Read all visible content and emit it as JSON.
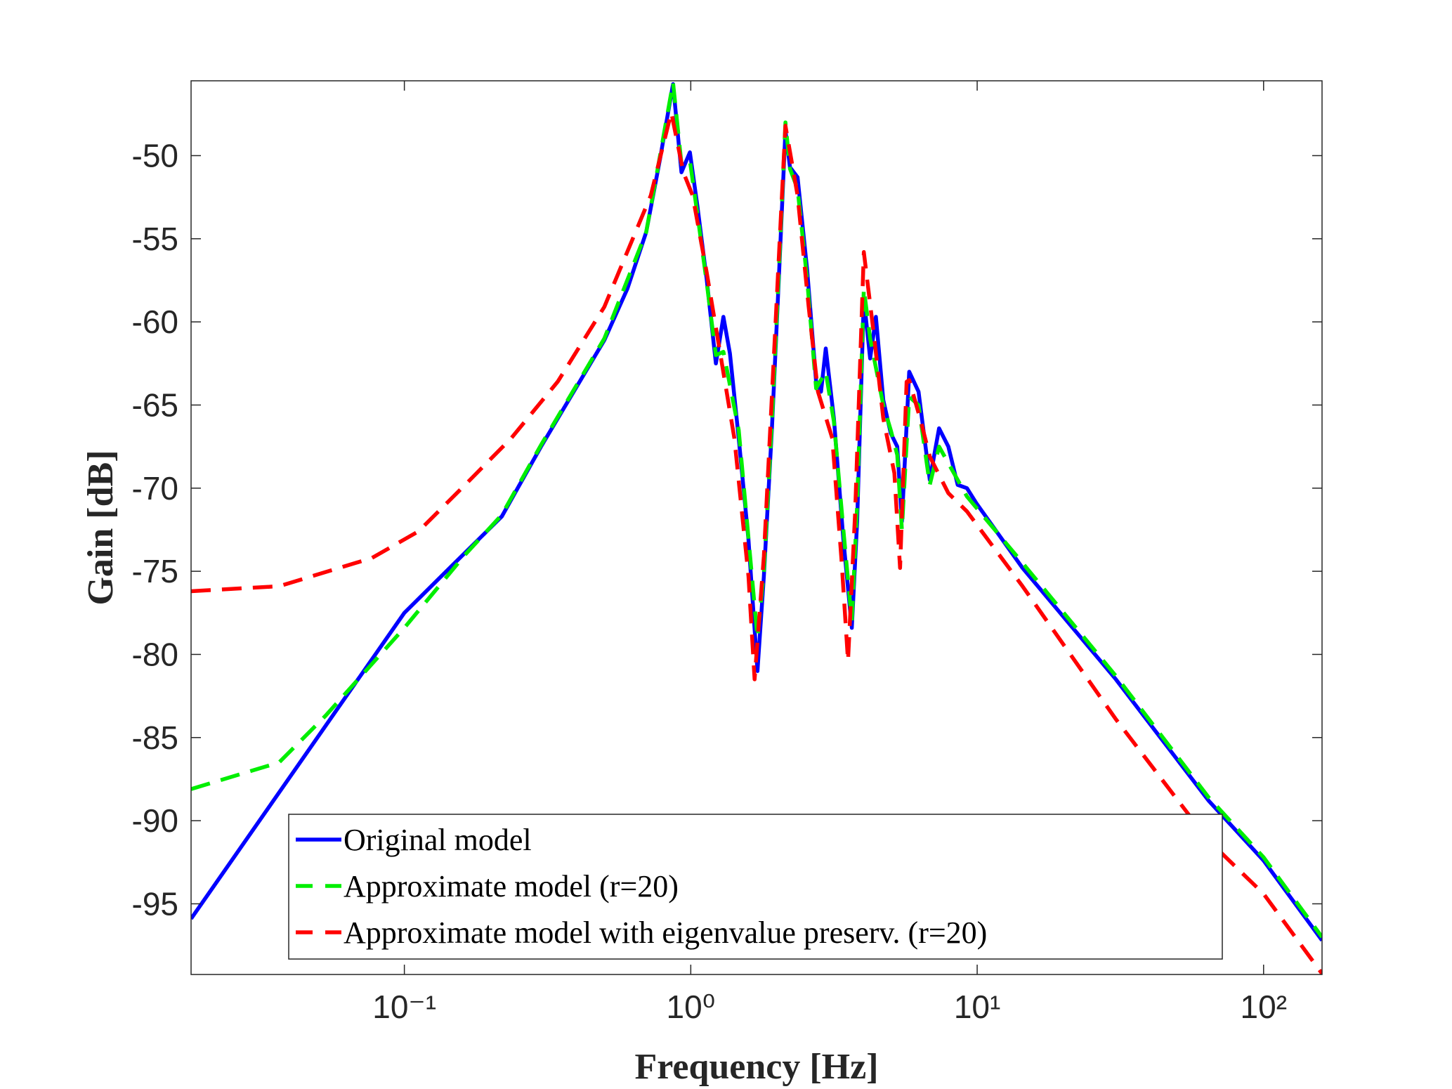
{
  "chart_data": {
    "type": "line",
    "xlabel": "Frequency [Hz]",
    "ylabel": "Gain [dB]",
    "xscale": "log",
    "xlim": [
      0.018,
      160
    ],
    "ylim": [
      -99.25,
      -45.5
    ],
    "xticks": [
      {
        "value": 0.1,
        "label": "10⁻¹"
      },
      {
        "value": 1,
        "label": "10⁰"
      },
      {
        "value": 10,
        "label": "10¹"
      },
      {
        "value": 100,
        "label": "10²"
      }
    ],
    "yticks": [
      -95,
      -90,
      -85,
      -80,
      -75,
      -70,
      -65,
      -60,
      -55,
      -50
    ],
    "legend": "lower left",
    "series": [
      {
        "name": "Original model",
        "color": "#0000ff",
        "style": "solid",
        "x": [
          0.018,
          0.1,
          0.219,
          0.3,
          0.499,
          0.601,
          0.699,
          0.781,
          0.867,
          0.928,
          0.993,
          1.054,
          1.136,
          1.224,
          1.3,
          1.37,
          1.47,
          1.59,
          1.71,
          1.8,
          1.92,
          2.03,
          2.14,
          2.22,
          2.36,
          2.55,
          2.74,
          2.85,
          2.96,
          3.16,
          3.41,
          3.65,
          3.81,
          4.02,
          4.23,
          4.43,
          4.7,
          4.99,
          5.26,
          5.46,
          5.79,
          6.24,
          6.83,
          7.36,
          7.93,
          8.55,
          9.21,
          9.93,
          14.4,
          30.5,
          64.3,
          100,
          160
        ],
        "values": [
          -95.9,
          -77.5,
          -71.7,
          -67.5,
          -61.1,
          -58,
          -54.6,
          -50.2,
          -45.7,
          -51,
          -49.8,
          -53,
          -57.4,
          -62.5,
          -59.7,
          -61.9,
          -67,
          -73.1,
          -81,
          -75.3,
          -66.4,
          -57.4,
          -48.5,
          -50.7,
          -51.3,
          -56.9,
          -63.6,
          -64.2,
          -61.6,
          -65.8,
          -73.1,
          -78.4,
          -72,
          -58.6,
          -62.2,
          -59.7,
          -64.7,
          -66.7,
          -67.5,
          -72,
          -63,
          -64.2,
          -69.5,
          -66.4,
          -67.5,
          -69.8,
          -70,
          -70.9,
          -74.8,
          -81.5,
          -88.8,
          -92.4,
          -97.2
        ]
      },
      {
        "name": "Approximate model (r=20)",
        "color": "#00ee00",
        "style": "dashed",
        "x": [
          0.018,
          0.0365,
          0.053,
          0.1,
          0.163,
          0.219,
          0.3,
          0.499,
          0.699,
          0.781,
          0.867,
          0.928,
          0.993,
          1.054,
          1.136,
          1.224,
          1.3,
          1.47,
          1.59,
          1.71,
          1.8,
          1.92,
          2.03,
          2.14,
          2.22,
          2.36,
          2.55,
          2.74,
          2.96,
          3.16,
          3.41,
          3.65,
          3.81,
          4.02,
          4.23,
          4.7,
          4.99,
          5.26,
          5.46,
          5.79,
          6.24,
          6.83,
          7.36,
          7.93,
          9.21,
          14.4,
          30.5,
          64.3,
          100,
          160
        ],
        "values": [
          -88.1,
          -86.5,
          -83.7,
          -78.4,
          -74,
          -71.6,
          -67.4,
          -61,
          -54.6,
          -50,
          -45.6,
          -50.5,
          -50.3,
          -53.5,
          -57.6,
          -62,
          -61.8,
          -66.5,
          -73,
          -79,
          -75,
          -66,
          -57,
          -48,
          -50.8,
          -52,
          -57.5,
          -64,
          -63,
          -66,
          -72.5,
          -78,
          -71,
          -58,
          -61,
          -65,
          -66.5,
          -68,
          -72.5,
          -64.5,
          -65,
          -69.8,
          -67.5,
          -68.5,
          -70.5,
          -74.5,
          -81.3,
          -88.6,
          -92.2,
          -97
        ]
      },
      {
        "name": "Approximate model with eigenvalue preserv. (r=20)",
        "color": "#ff0000",
        "style": "dashed",
        "x": [
          0.018,
          0.0365,
          0.077,
          0.112,
          0.163,
          0.236,
          0.343,
          0.499,
          0.725,
          0.855,
          0.942,
          1.015,
          1.136,
          1.27,
          1.42,
          1.59,
          1.67,
          1.8,
          1.99,
          2.14,
          2.36,
          2.58,
          2.78,
          3.12,
          3.36,
          3.54,
          3.75,
          4.02,
          4.36,
          4.7,
          5.14,
          5.38,
          5.67,
          5.79,
          6.34,
          6.83,
          7.93,
          9.21,
          14.4,
          30.5,
          64.3,
          100,
          160
        ],
        "values": [
          -76.2,
          -75.9,
          -74.2,
          -72.6,
          -69.8,
          -67,
          -63.6,
          -59.1,
          -52.4,
          -47.4,
          -51,
          -52.4,
          -57,
          -62,
          -67,
          -75.3,
          -81.5,
          -74.1,
          -59.1,
          -48.2,
          -52.4,
          -59.1,
          -64.2,
          -67,
          -74.3,
          -80.4,
          -71.4,
          -55.8,
          -60.8,
          -65.8,
          -69.1,
          -74.8,
          -63.6,
          -63.5,
          -65.9,
          -68.1,
          -70.3,
          -71.4,
          -75.9,
          -83.9,
          -91.2,
          -94.4,
          -99.2
        ]
      }
    ]
  }
}
